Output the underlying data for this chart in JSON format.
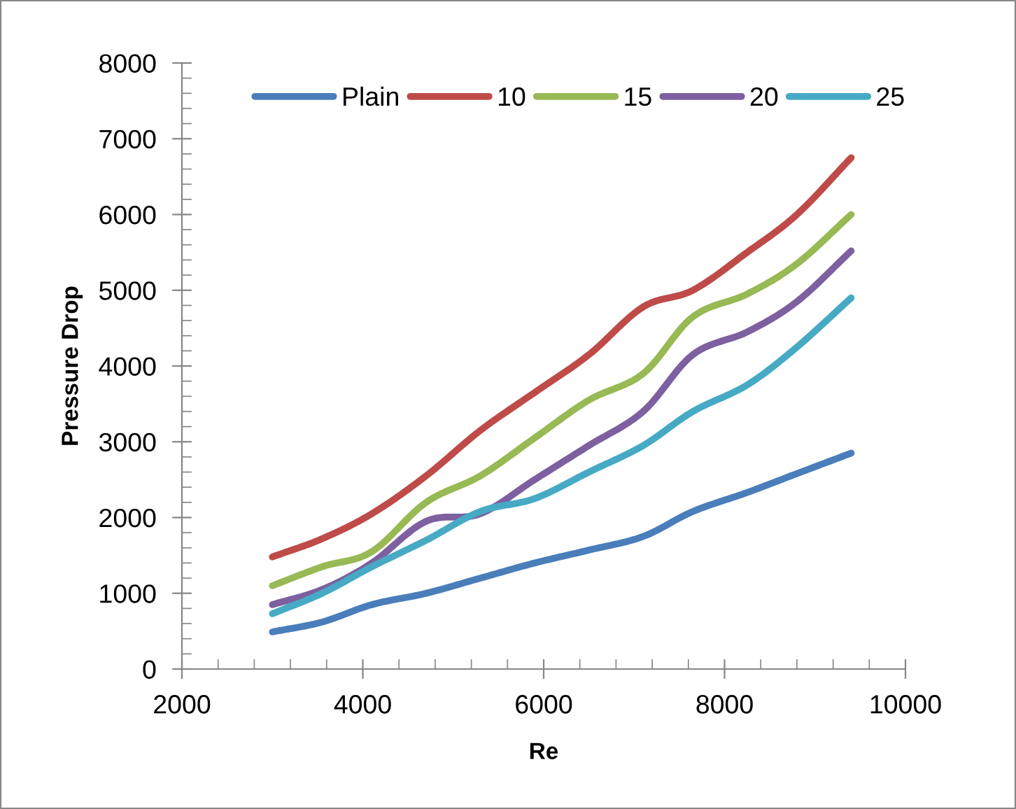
{
  "chart_data": {
    "type": "line",
    "xlabel": "Re",
    "ylabel": "Pressure Drop",
    "x": [
      3000,
      3550,
      4100,
      4700,
      5300,
      5900,
      6500,
      7100,
      7650,
      8250,
      8800,
      9400
    ],
    "series": [
      {
        "name": "Plain",
        "color": "#4a7ebb",
        "values": [
          490,
          620,
          850,
          1000,
          1200,
          1400,
          1570,
          1750,
          2080,
          2330,
          2580,
          2850
        ]
      },
      {
        "name": "10",
        "color": "#be4b48",
        "values": [
          1480,
          1720,
          2050,
          2550,
          3150,
          3650,
          4150,
          4780,
          5000,
          5500,
          6000,
          6750
        ]
      },
      {
        "name": "15",
        "color": "#98b954",
        "values": [
          1100,
          1350,
          1550,
          2200,
          2550,
          3050,
          3550,
          3900,
          4650,
          4950,
          5350,
          6000
        ]
      },
      {
        "name": "20",
        "color": "#7d60a0",
        "values": [
          850,
          1050,
          1400,
          1950,
          2050,
          2500,
          2950,
          3400,
          4150,
          4450,
          4850,
          5520
        ]
      },
      {
        "name": "25",
        "color": "#46aac5",
        "values": [
          730,
          1000,
          1350,
          1700,
          2080,
          2250,
          2600,
          2950,
          3400,
          3750,
          4250,
          4900
        ]
      }
    ],
    "xlim": [
      2000,
      10000
    ],
    "xticks": [
      2000,
      4000,
      6000,
      8000,
      10000
    ],
    "ylim": [
      0,
      8000
    ],
    "yticks": [
      0,
      1000,
      2000,
      3000,
      4000,
      5000,
      6000,
      7000,
      8000
    ],
    "grid": false,
    "legend": "top",
    "marker": "none",
    "line_style": "solid"
  }
}
